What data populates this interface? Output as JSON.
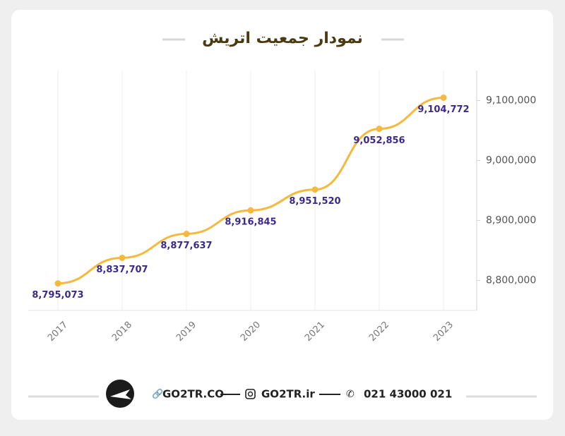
{
  "chart_data": {
    "type": "line",
    "title": "نمودار جمعیت اتریش",
    "categories": [
      "2017",
      "2018",
      "2019",
      "2020",
      "2021",
      "2022",
      "2023"
    ],
    "series": [
      {
        "name": "جمعیت",
        "color": "#f5b93e",
        "values": [
          8795073,
          8837707,
          8877637,
          8916845,
          8951520,
          9052856,
          9104772
        ],
        "value_labels": [
          "8,795,073",
          "8,837,707",
          "8,877,637",
          "8,916,845",
          "8,951,520",
          "9,052,856",
          "9,104,772"
        ]
      }
    ],
    "ylim": [
      8750000,
      9150000
    ],
    "yticks": [
      {
        "value": 8800000,
        "label": "8,800,000"
      },
      {
        "value": 8900000,
        "label": "8,900,000"
      },
      {
        "value": 9000000,
        "label": "9,000,000"
      },
      {
        "value": 9100000,
        "label": "9,100,000"
      }
    ],
    "label_color": "#3b2a8c"
  },
  "footer": {
    "website": "GO2TR.CO",
    "instagram": "GO2TR.ir",
    "phone": "021 43000 021"
  }
}
